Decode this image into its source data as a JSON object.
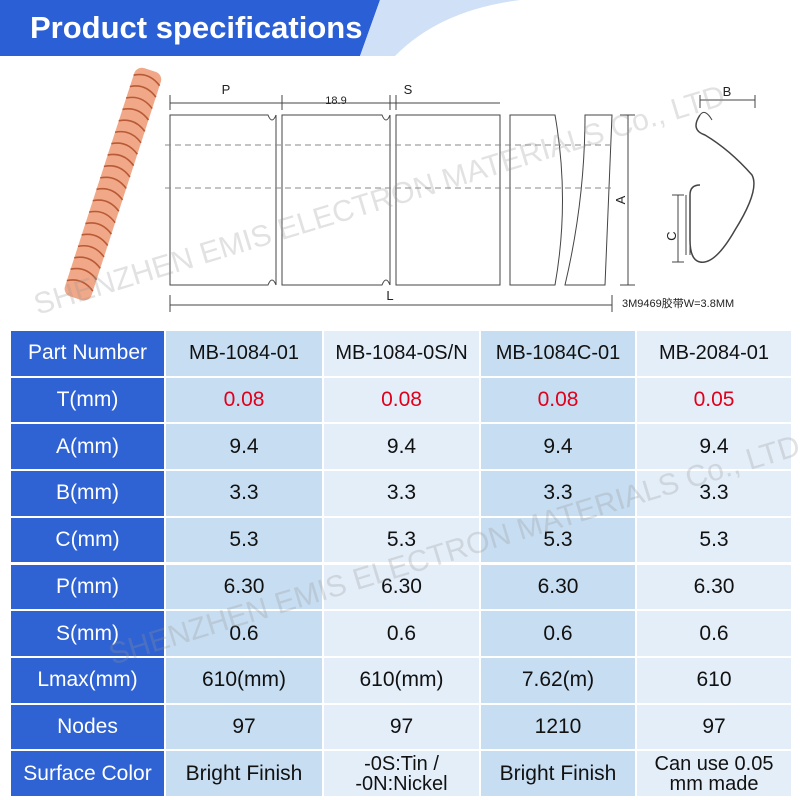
{
  "header": {
    "title": "Product specifications"
  },
  "drawing": {
    "p_label": "P",
    "pitch": "18.9",
    "s_label": "S",
    "a_label": "A",
    "l_label": "L",
    "b_label": "B",
    "c_label": "C",
    "tape_note": "3M9469胶带W=3.8MM"
  },
  "watermark": [
    "SHENZHEN EMIS ELECTRON MATERIALS Co., LTD",
    "SHENZHEN EMIS ELECTRON MATERIALS Co., LTD"
  ],
  "table": {
    "columns": [
      "Part Number",
      "MB-1084-01",
      "MB-1084-0S/N",
      "MB-1084C-01",
      "MB-2084-01"
    ],
    "rows": [
      [
        "T(mm)",
        "0.08",
        "0.08",
        "0.08",
        "0.05"
      ],
      [
        "A(mm)",
        "9.4",
        "9.4",
        "9.4",
        "9.4"
      ],
      [
        "B(mm)",
        "3.3",
        "3.3",
        "3.3",
        "3.3"
      ],
      [
        "C(mm)",
        "5.3",
        "5.3",
        "5.3",
        "5.3"
      ],
      [
        "P(mm)",
        "6.30",
        "6.30",
        "6.30",
        "6.30"
      ],
      [
        "S(mm)",
        "0.6",
        "0.6",
        "0.6",
        "0.6"
      ],
      [
        "Lmax(mm)",
        "610(mm)",
        "610(mm)",
        "7.62(m)",
        "610"
      ],
      [
        "Nodes",
        "97",
        "97",
        "1210",
        "97"
      ],
      [
        "Surface Color",
        "Bright Finish",
        "-0S:Tin / -0N:Nickel",
        "Bright Finish",
        "Can use 0.05 mm made"
      ]
    ]
  }
}
